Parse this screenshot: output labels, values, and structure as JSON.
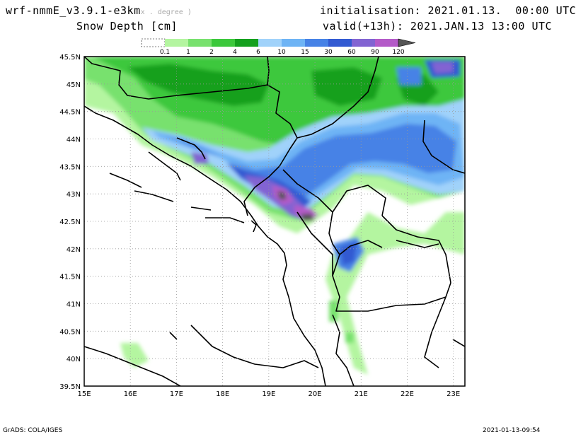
{
  "header": {
    "model": "wrf-nmmE_v3.9.1-e3km",
    "projection": "x . degree )",
    "field": "Snow Depth [cm]",
    "init_label": "initialisation:",
    "init_value": "2021.01.13.  00:00 UTC",
    "valid_label": "valid(+13h):",
    "valid_value": "2021.JAN.13 13:00 UTC"
  },
  "legend": {
    "levels": [
      "0.1",
      "1",
      "2",
      "4",
      "6",
      "10",
      "15",
      "30",
      "60",
      "90",
      "120"
    ],
    "colors": [
      "#ffffff",
      "#b4f5a0",
      "#78e16e",
      "#3cc83c",
      "#14a01e",
      "#a0d2fa",
      "#6eb4f5",
      "#4682e6",
      "#325ad2",
      "#8264d2",
      "#b45ac8",
      "#555555"
    ]
  },
  "map": {
    "lon_labels": [
      "15E",
      "16E",
      "17E",
      "18E",
      "19E",
      "20E",
      "21E",
      "22E",
      "23E"
    ],
    "lat_labels": [
      "45.5N",
      "45N",
      "44.5N",
      "44N",
      "43.5N",
      "43N",
      "42.5N",
      "42N",
      "41.5N",
      "41N",
      "40.5N",
      "40N",
      "39.5N"
    ]
  },
  "footer": {
    "left": "GrADS: COLA/IGES",
    "right": "2021-01-13-09:54"
  }
}
